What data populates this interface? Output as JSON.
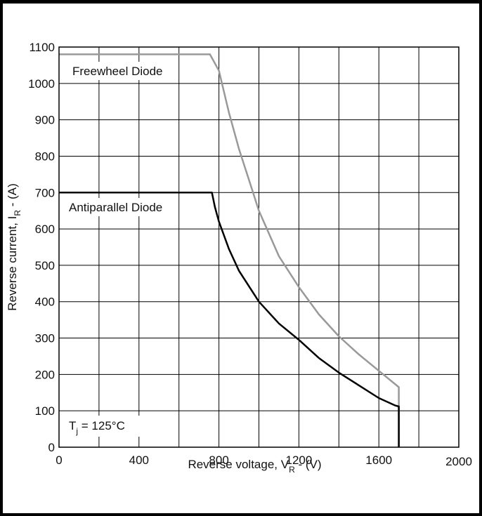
{
  "chart_data": {
    "type": "line",
    "xlabel": "Reverse voltage, V",
    "xlabel_sub": "R",
    "xlabel_tail": " - (V)",
    "ylabel": "Reverse current, I",
    "ylabel_sub": "R",
    "ylabel_tail": " - (A)",
    "xlim": [
      0,
      2000
    ],
    "ylim": [
      0,
      1100
    ],
    "grid": true,
    "x_ticks": [
      0,
      200,
      400,
      600,
      800,
      1000,
      1200,
      1400,
      1600,
      1800,
      2000
    ],
    "x_tick_labels": [
      "0",
      "",
      "400",
      "",
      "800",
      "",
      "1200",
      "",
      "1600",
      "",
      "2000"
    ],
    "y_ticks": [
      0,
      100,
      200,
      300,
      400,
      500,
      600,
      700,
      800,
      900,
      1000,
      1100
    ],
    "y_tick_labels": [
      "0",
      "100",
      "200",
      "300",
      "400",
      "500",
      "600",
      "700",
      "800",
      "900",
      "1000",
      "1100"
    ],
    "series": [
      {
        "name": "Freewheel Diode",
        "color": "#999999",
        "points": [
          [
            0,
            1080
          ],
          [
            755,
            1080
          ],
          [
            800,
            1035
          ],
          [
            850,
            920
          ],
          [
            900,
            820
          ],
          [
            950,
            735
          ],
          [
            1000,
            650
          ],
          [
            1100,
            525
          ],
          [
            1200,
            440
          ],
          [
            1300,
            365
          ],
          [
            1400,
            305
          ],
          [
            1500,
            255
          ],
          [
            1600,
            210
          ],
          [
            1700,
            165
          ],
          [
            1700,
            0
          ]
        ]
      },
      {
        "name": "Antiparallel Diode",
        "color": "#000000",
        "points": [
          [
            0,
            700
          ],
          [
            765,
            700
          ],
          [
            780,
            660
          ],
          [
            800,
            620
          ],
          [
            850,
            545
          ],
          [
            900,
            485
          ],
          [
            1000,
            400
          ],
          [
            1100,
            340
          ],
          [
            1200,
            295
          ],
          [
            1300,
            245
          ],
          [
            1400,
            205
          ],
          [
            1500,
            170
          ],
          [
            1600,
            135
          ],
          [
            1680,
            115
          ],
          [
            1700,
            112
          ],
          [
            1700,
            0
          ]
        ]
      }
    ],
    "annotation": {
      "main": "T",
      "sub": "j",
      "tail": " = 125°C"
    }
  }
}
